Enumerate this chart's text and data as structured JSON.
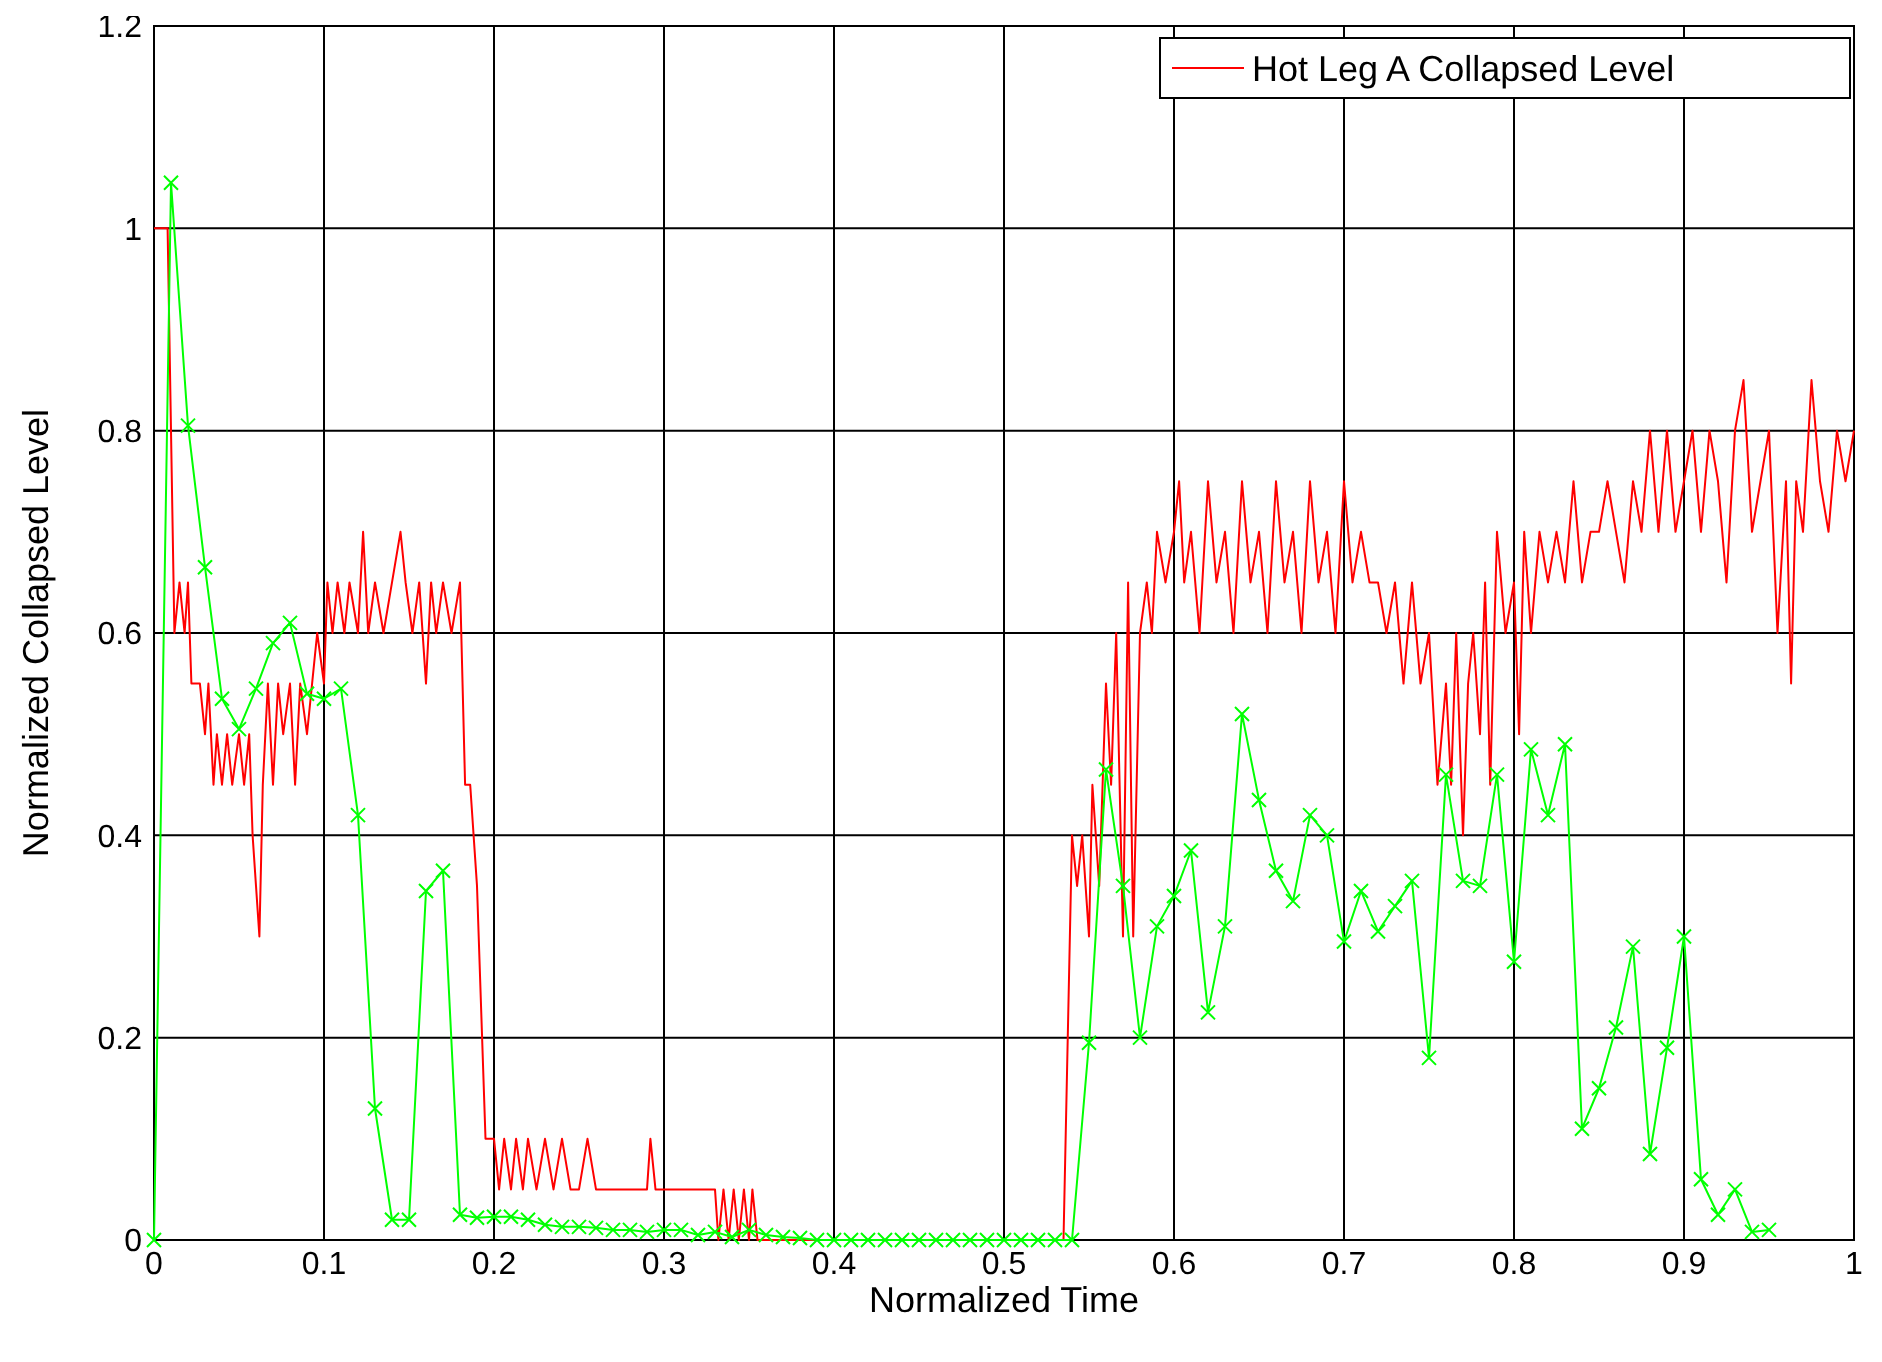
{
  "chart_data": {
    "type": "line",
    "xlabel": "Normalized Time",
    "ylabel": "Normalized Collapsed Level",
    "xlim": [
      0,
      1
    ],
    "ylim": [
      0,
      1.2
    ],
    "xticks": [
      0,
      0.1,
      0.2,
      0.3,
      0.4,
      0.5,
      0.6,
      0.7,
      0.8,
      0.9,
      1
    ],
    "yticks": [
      0,
      0.2,
      0.4,
      0.6,
      0.8,
      1,
      1.2
    ],
    "grid": true,
    "legend": "top right",
    "series": [
      {
        "name": "Hot Leg A Collapsed Level",
        "color": "#ff0000",
        "marker": "none",
        "x": [
          0,
          0.008,
          0.012,
          0.015,
          0.018,
          0.02,
          0.022,
          0.027,
          0.03,
          0.032,
          0.035,
          0.037,
          0.04,
          0.043,
          0.046,
          0.05,
          0.053,
          0.056,
          0.058,
          0.06,
          0.062,
          0.064,
          0.067,
          0.07,
          0.073,
          0.076,
          0.08,
          0.083,
          0.086,
          0.09,
          0.093,
          0.096,
          0.1,
          0.102,
          0.105,
          0.108,
          0.112,
          0.115,
          0.12,
          0.123,
          0.126,
          0.13,
          0.135,
          0.14,
          0.145,
          0.148,
          0.152,
          0.156,
          0.16,
          0.163,
          0.166,
          0.17,
          0.175,
          0.18,
          0.183,
          0.186,
          0.19,
          0.195,
          0.2,
          0.203,
          0.206,
          0.21,
          0.213,
          0.217,
          0.22,
          0.225,
          0.23,
          0.235,
          0.24,
          0.245,
          0.25,
          0.255,
          0.26,
          0.29,
          0.292,
          0.295,
          0.33,
          0.332,
          0.335,
          0.338,
          0.341,
          0.344,
          0.347,
          0.35,
          0.352,
          0.355,
          0.4,
          0.535,
          0.54,
          0.543,
          0.546,
          0.55,
          0.552,
          0.556,
          0.56,
          0.563,
          0.566,
          0.57,
          0.573,
          0.576,
          0.58,
          0.584,
          0.587,
          0.59,
          0.595,
          0.6,
          0.603,
          0.606,
          0.61,
          0.615,
          0.62,
          0.625,
          0.63,
          0.635,
          0.64,
          0.645,
          0.65,
          0.655,
          0.66,
          0.665,
          0.67,
          0.675,
          0.68,
          0.685,
          0.69,
          0.695,
          0.7,
          0.705,
          0.71,
          0.715,
          0.72,
          0.725,
          0.73,
          0.735,
          0.74,
          0.745,
          0.75,
          0.755,
          0.76,
          0.763,
          0.766,
          0.77,
          0.773,
          0.776,
          0.78,
          0.783,
          0.786,
          0.79,
          0.795,
          0.8,
          0.803,
          0.806,
          0.81,
          0.815,
          0.82,
          0.825,
          0.83,
          0.835,
          0.84,
          0.845,
          0.85,
          0.855,
          0.86,
          0.865,
          0.87,
          0.875,
          0.88,
          0.885,
          0.89,
          0.895,
          0.9,
          0.905,
          0.91,
          0.915,
          0.92,
          0.925,
          0.93,
          0.935,
          0.94,
          0.945,
          0.95,
          0.955,
          0.96,
          0.963,
          0.966,
          0.97,
          0.975,
          0.98,
          0.985,
          0.99,
          0.995,
          1
        ],
        "values": [
          1,
          1,
          0.6,
          0.65,
          0.6,
          0.65,
          0.55,
          0.55,
          0.5,
          0.55,
          0.45,
          0.5,
          0.45,
          0.5,
          0.45,
          0.5,
          0.45,
          0.5,
          0.4,
          0.35,
          0.3,
          0.45,
          0.55,
          0.45,
          0.55,
          0.5,
          0.55,
          0.45,
          0.55,
          0.5,
          0.55,
          0.6,
          0.55,
          0.65,
          0.6,
          0.65,
          0.6,
          0.65,
          0.6,
          0.7,
          0.6,
          0.65,
          0.6,
          0.65,
          0.7,
          0.65,
          0.6,
          0.65,
          0.55,
          0.65,
          0.6,
          0.65,
          0.6,
          0.65,
          0.45,
          0.45,
          0.35,
          0.1,
          0.1,
          0.05,
          0.1,
          0.05,
          0.1,
          0.05,
          0.1,
          0.05,
          0.1,
          0.05,
          0.1,
          0.05,
          0.05,
          0.1,
          0.05,
          0.05,
          0.1,
          0.05,
          0.05,
          0,
          0.05,
          0,
          0.05,
          0,
          0.05,
          0,
          0.05,
          0,
          0,
          0,
          0.4,
          0.35,
          0.4,
          0.3,
          0.45,
          0.35,
          0.55,
          0.45,
          0.6,
          0.3,
          0.65,
          0.3,
          0.6,
          0.65,
          0.6,
          0.7,
          0.65,
          0.7,
          0.75,
          0.65,
          0.7,
          0.6,
          0.75,
          0.65,
          0.7,
          0.6,
          0.75,
          0.65,
          0.7,
          0.6,
          0.75,
          0.65,
          0.7,
          0.6,
          0.75,
          0.65,
          0.7,
          0.6,
          0.75,
          0.65,
          0.7,
          0.65,
          0.65,
          0.6,
          0.65,
          0.55,
          0.65,
          0.55,
          0.6,
          0.45,
          0.55,
          0.45,
          0.6,
          0.4,
          0.55,
          0.6,
          0.5,
          0.65,
          0.45,
          0.7,
          0.6,
          0.65,
          0.5,
          0.7,
          0.6,
          0.7,
          0.65,
          0.7,
          0.65,
          0.75,
          0.65,
          0.7,
          0.7,
          0.75,
          0.7,
          0.65,
          0.75,
          0.7,
          0.8,
          0.7,
          0.8,
          0.7,
          0.75,
          0.8,
          0.7,
          0.8,
          0.75,
          0.65,
          0.8,
          0.85,
          0.7,
          0.75,
          0.8,
          0.6,
          0.75,
          0.55,
          0.75,
          0.7,
          0.85,
          0.75,
          0.7,
          0.8,
          0.75,
          0.8
        ]
      },
      {
        "color": "#00ff00",
        "marker": "cross",
        "x": [
          0,
          0.01,
          0.02,
          0.03,
          0.04,
          0.05,
          0.06,
          0.07,
          0.08,
          0.09,
          0.1,
          0.11,
          0.12,
          0.13,
          0.14,
          0.15,
          0.16,
          0.17,
          0.18,
          0.19,
          0.2,
          0.21,
          0.22,
          0.23,
          0.24,
          0.25,
          0.26,
          0.27,
          0.28,
          0.29,
          0.3,
          0.31,
          0.32,
          0.33,
          0.34,
          0.35,
          0.36,
          0.37,
          0.38,
          0.39,
          0.4,
          0.41,
          0.42,
          0.43,
          0.44,
          0.45,
          0.46,
          0.47,
          0.48,
          0.49,
          0.5,
          0.51,
          0.52,
          0.53,
          0.54,
          0.55,
          0.56,
          0.57,
          0.58,
          0.59,
          0.6,
          0.61,
          0.62,
          0.63,
          0.64,
          0.65,
          0.66,
          0.67,
          0.68,
          0.69,
          0.7,
          0.71,
          0.72,
          0.73,
          0.74,
          0.75,
          0.76,
          0.77,
          0.78,
          0.79,
          0.8,
          0.81,
          0.82,
          0.83,
          0.84,
          0.85,
          0.86,
          0.87,
          0.88,
          0.89,
          0.9,
          0.91,
          0.92,
          0.93,
          0.94,
          0.95
        ],
        "values": [
          0,
          1.045,
          0.805,
          0.665,
          0.535,
          0.505,
          0.545,
          0.59,
          0.61,
          0.54,
          0.535,
          0.545,
          0.42,
          0.13,
          0.02,
          0.02,
          0.345,
          0.365,
          0.025,
          0.022,
          0.023,
          0.023,
          0.02,
          0.015,
          0.013,
          0.013,
          0.012,
          0.01,
          0.01,
          0.008,
          0.01,
          0.01,
          0.005,
          0.008,
          0.003,
          0.01,
          0.005,
          0.003,
          0.002,
          0,
          0,
          0,
          0,
          0,
          0,
          0,
          0,
          0,
          0,
          0,
          0,
          0,
          0,
          0,
          0,
          0.195,
          0.465,
          0.35,
          0.2,
          0.31,
          0.34,
          0.385,
          0.225,
          0.31,
          0.52,
          0.435,
          0.365,
          0.335,
          0.42,
          0.4,
          0.295,
          0.345,
          0.305,
          0.33,
          0.355,
          0.18,
          0.46,
          0.355,
          0.35,
          0.46,
          0.275,
          0.485,
          0.42,
          0.49,
          0.11,
          0.15,
          0.21,
          0.29,
          0.085,
          0.19,
          0.3,
          0.06,
          0.025,
          0.05,
          0.008,
          0.01
        ]
      }
    ]
  }
}
